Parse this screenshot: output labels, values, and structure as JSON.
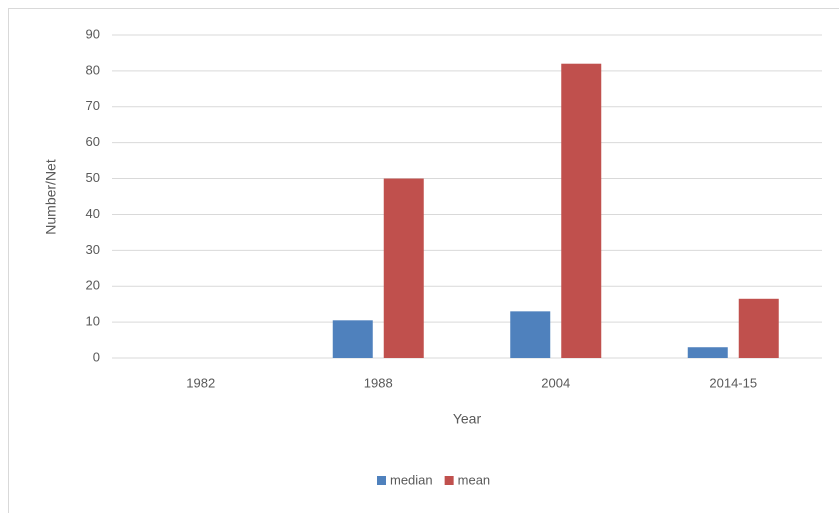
{
  "chart_data": {
    "type": "bar",
    "categories": [
      "1982",
      "1988",
      "2004",
      "2014-15"
    ],
    "series": [
      {
        "name": "median",
        "color": "#4f81bd",
        "values": [
          0,
          10.5,
          13,
          3
        ]
      },
      {
        "name": "mean",
        "color": "#c0504d",
        "values": [
          0,
          50,
          82,
          16.5
        ]
      }
    ],
    "xlabel": "Year",
    "ylabel": "Number/Net",
    "ylim": [
      0,
      90
    ],
    "yticks": [
      0,
      10,
      20,
      30,
      40,
      50,
      60,
      70,
      80,
      90
    ],
    "grid": true,
    "legend": "bottom"
  }
}
